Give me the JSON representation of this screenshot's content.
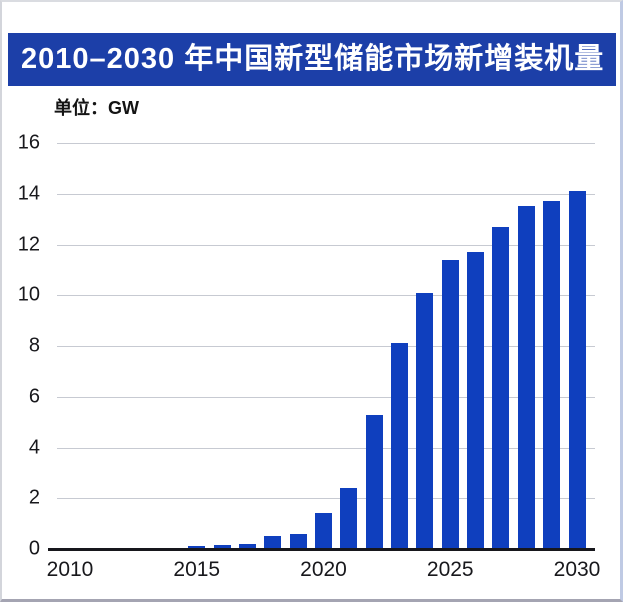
{
  "banner": {
    "title": "2010–2030 年中国新型储能市场新增装机量",
    "bg_color": "#1c3fa8",
    "text_color": "#ffffff"
  },
  "unit_label": "单位：GW",
  "chart_data": {
    "type": "bar",
    "title": "2010–2030 年中国新型储能市场新增装机量",
    "unit": "GW",
    "categories": [
      2010,
      2011,
      2012,
      2013,
      2014,
      2015,
      2016,
      2017,
      2018,
      2019,
      2020,
      2021,
      2022,
      2023,
      2024,
      2025,
      2026,
      2027,
      2028,
      2029,
      2030
    ],
    "values": [
      0,
      0,
      0,
      0,
      0,
      0.1,
      0.15,
      0.2,
      0.5,
      0.6,
      1.4,
      2.4,
      5.3,
      8.1,
      10.1,
      11.4,
      11.7,
      12.7,
      13.5,
      13.7,
      14.1
    ],
    "xlabel": "",
    "ylabel": "",
    "ylim": [
      0,
      16
    ],
    "y_ticks": [
      0,
      2,
      4,
      6,
      8,
      10,
      12,
      14,
      16
    ],
    "x_tick_labels": [
      "2010",
      "2015",
      "2020",
      "2025",
      "2030"
    ],
    "bar_color": "#0f3fbe",
    "gridline_color": "#c7cad2",
    "axis_color": "#17171c",
    "grid": true,
    "legend": "none"
  }
}
